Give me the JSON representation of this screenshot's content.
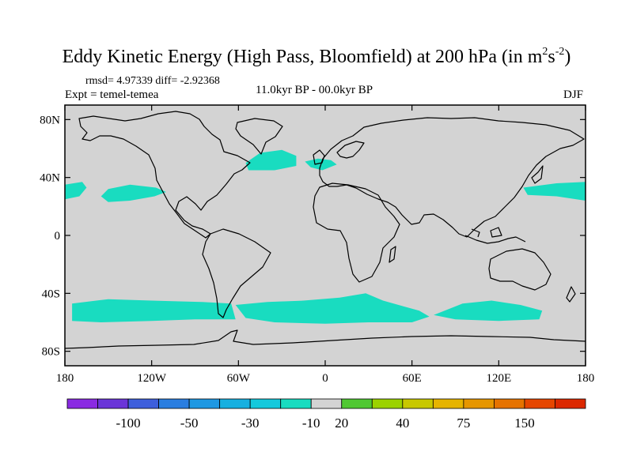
{
  "title": {
    "main": "Eddy Kinetic Energy (High Pass, Bloomfield) at 200 hPa (in m",
    "sup1": "2",
    "mid": "s",
    "sup2": "-2",
    "end": ")"
  },
  "stats": "rmsd= 4.97339 diff= -2.92368",
  "experiment": "Expt = temel-temea",
  "period": "11.0kyr BP - 00.0kyr BP",
  "season": "DJF",
  "map": {
    "projection": "cylindrical-equidistant",
    "lon_range": [
      -180,
      180
    ],
    "lat_range": [
      -90,
      90
    ],
    "land_color": "#d3d3d3",
    "coastline_color": "#000000",
    "lat_ticks": [
      {
        "lat": 80,
        "label": "80N"
      },
      {
        "lat": 40,
        "label": "40N"
      },
      {
        "lat": 0,
        "label": "0"
      },
      {
        "lat": -40,
        "label": "40S"
      },
      {
        "lat": -80,
        "label": "80S"
      }
    ],
    "lon_ticks": [
      {
        "lon": -180,
        "label": "180"
      },
      {
        "lon": -120,
        "label": "120W"
      },
      {
        "lon": -60,
        "label": "60W"
      },
      {
        "lon": 0,
        "label": "0"
      },
      {
        "lon": 60,
        "label": "60E"
      },
      {
        "lon": 120,
        "label": "120E"
      },
      {
        "lon": 180,
        "label": "180"
      }
    ],
    "anomaly_regions": [
      {
        "name": "north-pacific-east",
        "level": "-10 to -30",
        "color": "#19dcc0",
        "points": [
          [
            -180,
            35
          ],
          [
            -168,
            37
          ],
          [
            -165,
            33
          ],
          [
            -170,
            27
          ],
          [
            -180,
            25
          ]
        ]
      },
      {
        "name": "north-pacific-central",
        "level": "-10 to -30",
        "color": "#19dcc0",
        "points": [
          [
            -150,
            32
          ],
          [
            -135,
            35
          ],
          [
            -117,
            33
          ],
          [
            -110,
            30
          ],
          [
            -118,
            27
          ],
          [
            -135,
            24
          ],
          [
            -150,
            23
          ],
          [
            -155,
            27
          ]
        ]
      },
      {
        "name": "north-pacific-west",
        "level": "-10 to -30",
        "color": "#19dcc0",
        "points": [
          [
            137,
            33
          ],
          [
            160,
            36
          ],
          [
            180,
            37
          ],
          [
            180,
            24
          ],
          [
            160,
            27
          ],
          [
            140,
            28
          ]
        ]
      },
      {
        "name": "north-atlantic",
        "level": "-10 to -30",
        "color": "#19dcc0",
        "points": [
          [
            -55,
            50
          ],
          [
            -45,
            57
          ],
          [
            -30,
            59
          ],
          [
            -20,
            55
          ],
          [
            -20,
            48
          ],
          [
            -35,
            45
          ],
          [
            -53,
            45
          ]
        ]
      },
      {
        "name": "western-europe",
        "level": "-10 to -30",
        "color": "#19dcc0",
        "points": [
          [
            -14,
            51
          ],
          [
            -5,
            53
          ],
          [
            4,
            52
          ],
          [
            8,
            49
          ],
          [
            -2,
            45
          ],
          [
            -10,
            47
          ]
        ]
      },
      {
        "name": "southern-ocean-pacific",
        "level": "-10 to -30",
        "color": "#19dcc0",
        "points": [
          [
            -175,
            -47
          ],
          [
            -150,
            -44
          ],
          [
            -120,
            -45
          ],
          [
            -85,
            -46
          ],
          [
            -65,
            -47
          ],
          [
            -62,
            -58
          ],
          [
            -90,
            -58
          ],
          [
            -120,
            -59
          ],
          [
            -155,
            -60
          ],
          [
            -175,
            -59
          ]
        ]
      },
      {
        "name": "southern-ocean-atlantic-indian",
        "level": "-10 to -30",
        "color": "#19dcc0",
        "points": [
          [
            -62,
            -48
          ],
          [
            -40,
            -46
          ],
          [
            -15,
            -45
          ],
          [
            10,
            -43
          ],
          [
            28,
            -40
          ],
          [
            40,
            -45
          ],
          [
            65,
            -52
          ],
          [
            72,
            -56
          ],
          [
            60,
            -60
          ],
          [
            30,
            -60
          ],
          [
            0,
            -61
          ],
          [
            -35,
            -60
          ],
          [
            -55,
            -57
          ]
        ]
      },
      {
        "name": "southern-ocean-australia",
        "level": "-10 to -30",
        "color": "#19dcc0",
        "points": [
          [
            75,
            -55
          ],
          [
            95,
            -47
          ],
          [
            115,
            -45
          ],
          [
            135,
            -48
          ],
          [
            150,
            -52
          ],
          [
            148,
            -58
          ],
          [
            120,
            -59
          ],
          [
            90,
            -58
          ]
        ]
      }
    ]
  },
  "colorbar": {
    "colors": [
      "#8a2be2",
      "#6a35d8",
      "#3e5fdc",
      "#2a7ee0",
      "#1e98e2",
      "#17b0e0",
      "#15c9dc",
      "#19dcc0",
      "#d3d3d3",
      "#50c832",
      "#9bd200",
      "#c8c800",
      "#e6b400",
      "#e69600",
      "#e67300",
      "#e64600",
      "#dc2800"
    ],
    "labels": [
      {
        "after_box": 2,
        "text": "-100"
      },
      {
        "after_box": 4,
        "text": "-50"
      },
      {
        "after_box": 6,
        "text": "-30"
      },
      {
        "after_box": 8,
        "text": "-10"
      },
      {
        "after_box": 9,
        "text": "20"
      },
      {
        "after_box": 11,
        "text": "40"
      },
      {
        "after_box": 13,
        "text": "75"
      },
      {
        "after_box": 15,
        "text": "150"
      }
    ]
  }
}
